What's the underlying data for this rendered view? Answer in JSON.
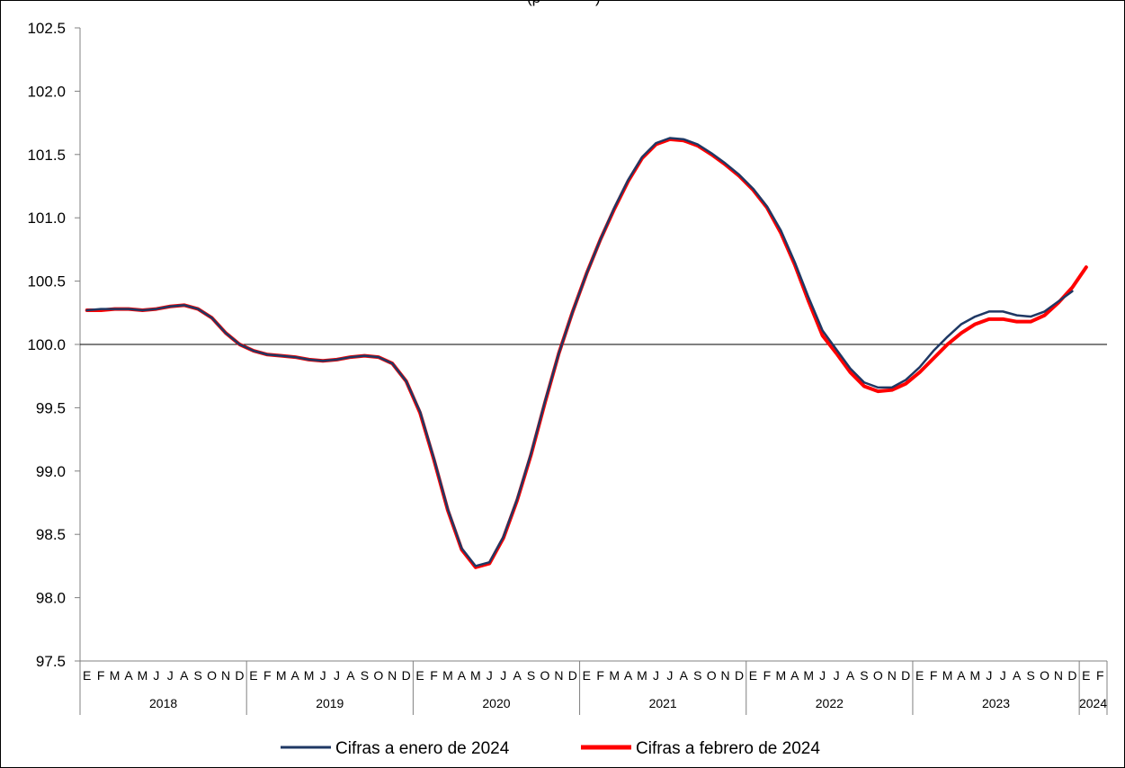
{
  "chart_data": {
    "type": "line",
    "title_fragment": "(p",
    "title_fragment_end": ")",
    "ylim": [
      97.5,
      102.5
    ],
    "yticks": [
      "97.5",
      "98.0",
      "98.5",
      "99.0",
      "99.5",
      "100.0",
      "100.5",
      "101.0",
      "101.5",
      "102.0",
      "102.5"
    ],
    "reference_line": 100.0,
    "month_labels": [
      "E",
      "F",
      "M",
      "A",
      "M",
      "J",
      "J",
      "A",
      "S",
      "O",
      "N",
      "D"
    ],
    "years": [
      {
        "label": "2018",
        "months": 12
      },
      {
        "label": "2019",
        "months": 12
      },
      {
        "label": "2020",
        "months": 12
      },
      {
        "label": "2021",
        "months": 12
      },
      {
        "label": "2022",
        "months": 12
      },
      {
        "label": "2023",
        "months": 12
      },
      {
        "label": "2024",
        "months": 2
      }
    ],
    "legend": {
      "placement": "bottom"
    },
    "series": [
      {
        "name": "Cifras a enero de 2024",
        "color": "#1f3864",
        "values": [
          100.27,
          100.28,
          100.28,
          100.28,
          100.27,
          100.28,
          100.3,
          100.31,
          100.28,
          100.21,
          100.09,
          100.0,
          99.95,
          99.92,
          99.91,
          99.9,
          99.88,
          99.87,
          99.88,
          99.9,
          99.91,
          99.9,
          99.85,
          99.71,
          99.47,
          99.1,
          98.7,
          98.39,
          98.25,
          98.28,
          98.48,
          98.78,
          99.14,
          99.55,
          99.93,
          100.26,
          100.56,
          100.83,
          101.08,
          101.3,
          101.48,
          101.59,
          101.63,
          101.62,
          101.58,
          101.51,
          101.43,
          101.34,
          101.23,
          101.09,
          100.9,
          100.65,
          100.37,
          100.11,
          99.96,
          99.81,
          99.7,
          99.66,
          99.66,
          99.72,
          99.82,
          99.95,
          100.06,
          100.16,
          100.22,
          100.26,
          100.26,
          100.23,
          100.22,
          100.26,
          100.34,
          100.42
        ],
        "months_covered": 72
      },
      {
        "name": "Cifras a febrero de 2024",
        "color": "#ff0000",
        "values": [
          100.27,
          100.27,
          100.28,
          100.28,
          100.27,
          100.28,
          100.3,
          100.31,
          100.28,
          100.21,
          100.09,
          100.0,
          99.95,
          99.92,
          99.91,
          99.9,
          99.88,
          99.87,
          99.88,
          99.9,
          99.91,
          99.9,
          99.85,
          99.71,
          99.46,
          99.09,
          98.69,
          98.38,
          98.24,
          98.27,
          98.47,
          98.77,
          99.13,
          99.54,
          99.93,
          100.26,
          100.56,
          100.83,
          101.07,
          101.29,
          101.47,
          101.58,
          101.62,
          101.61,
          101.57,
          101.5,
          101.42,
          101.33,
          101.22,
          101.08,
          100.88,
          100.63,
          100.34,
          100.07,
          99.93,
          99.78,
          99.67,
          99.63,
          99.64,
          99.69,
          99.78,
          99.89,
          100.0,
          100.09,
          100.16,
          100.2,
          100.2,
          100.18,
          100.18,
          100.23,
          100.33,
          100.45,
          100.61
        ],
        "months_covered": 73
      }
    ]
  }
}
